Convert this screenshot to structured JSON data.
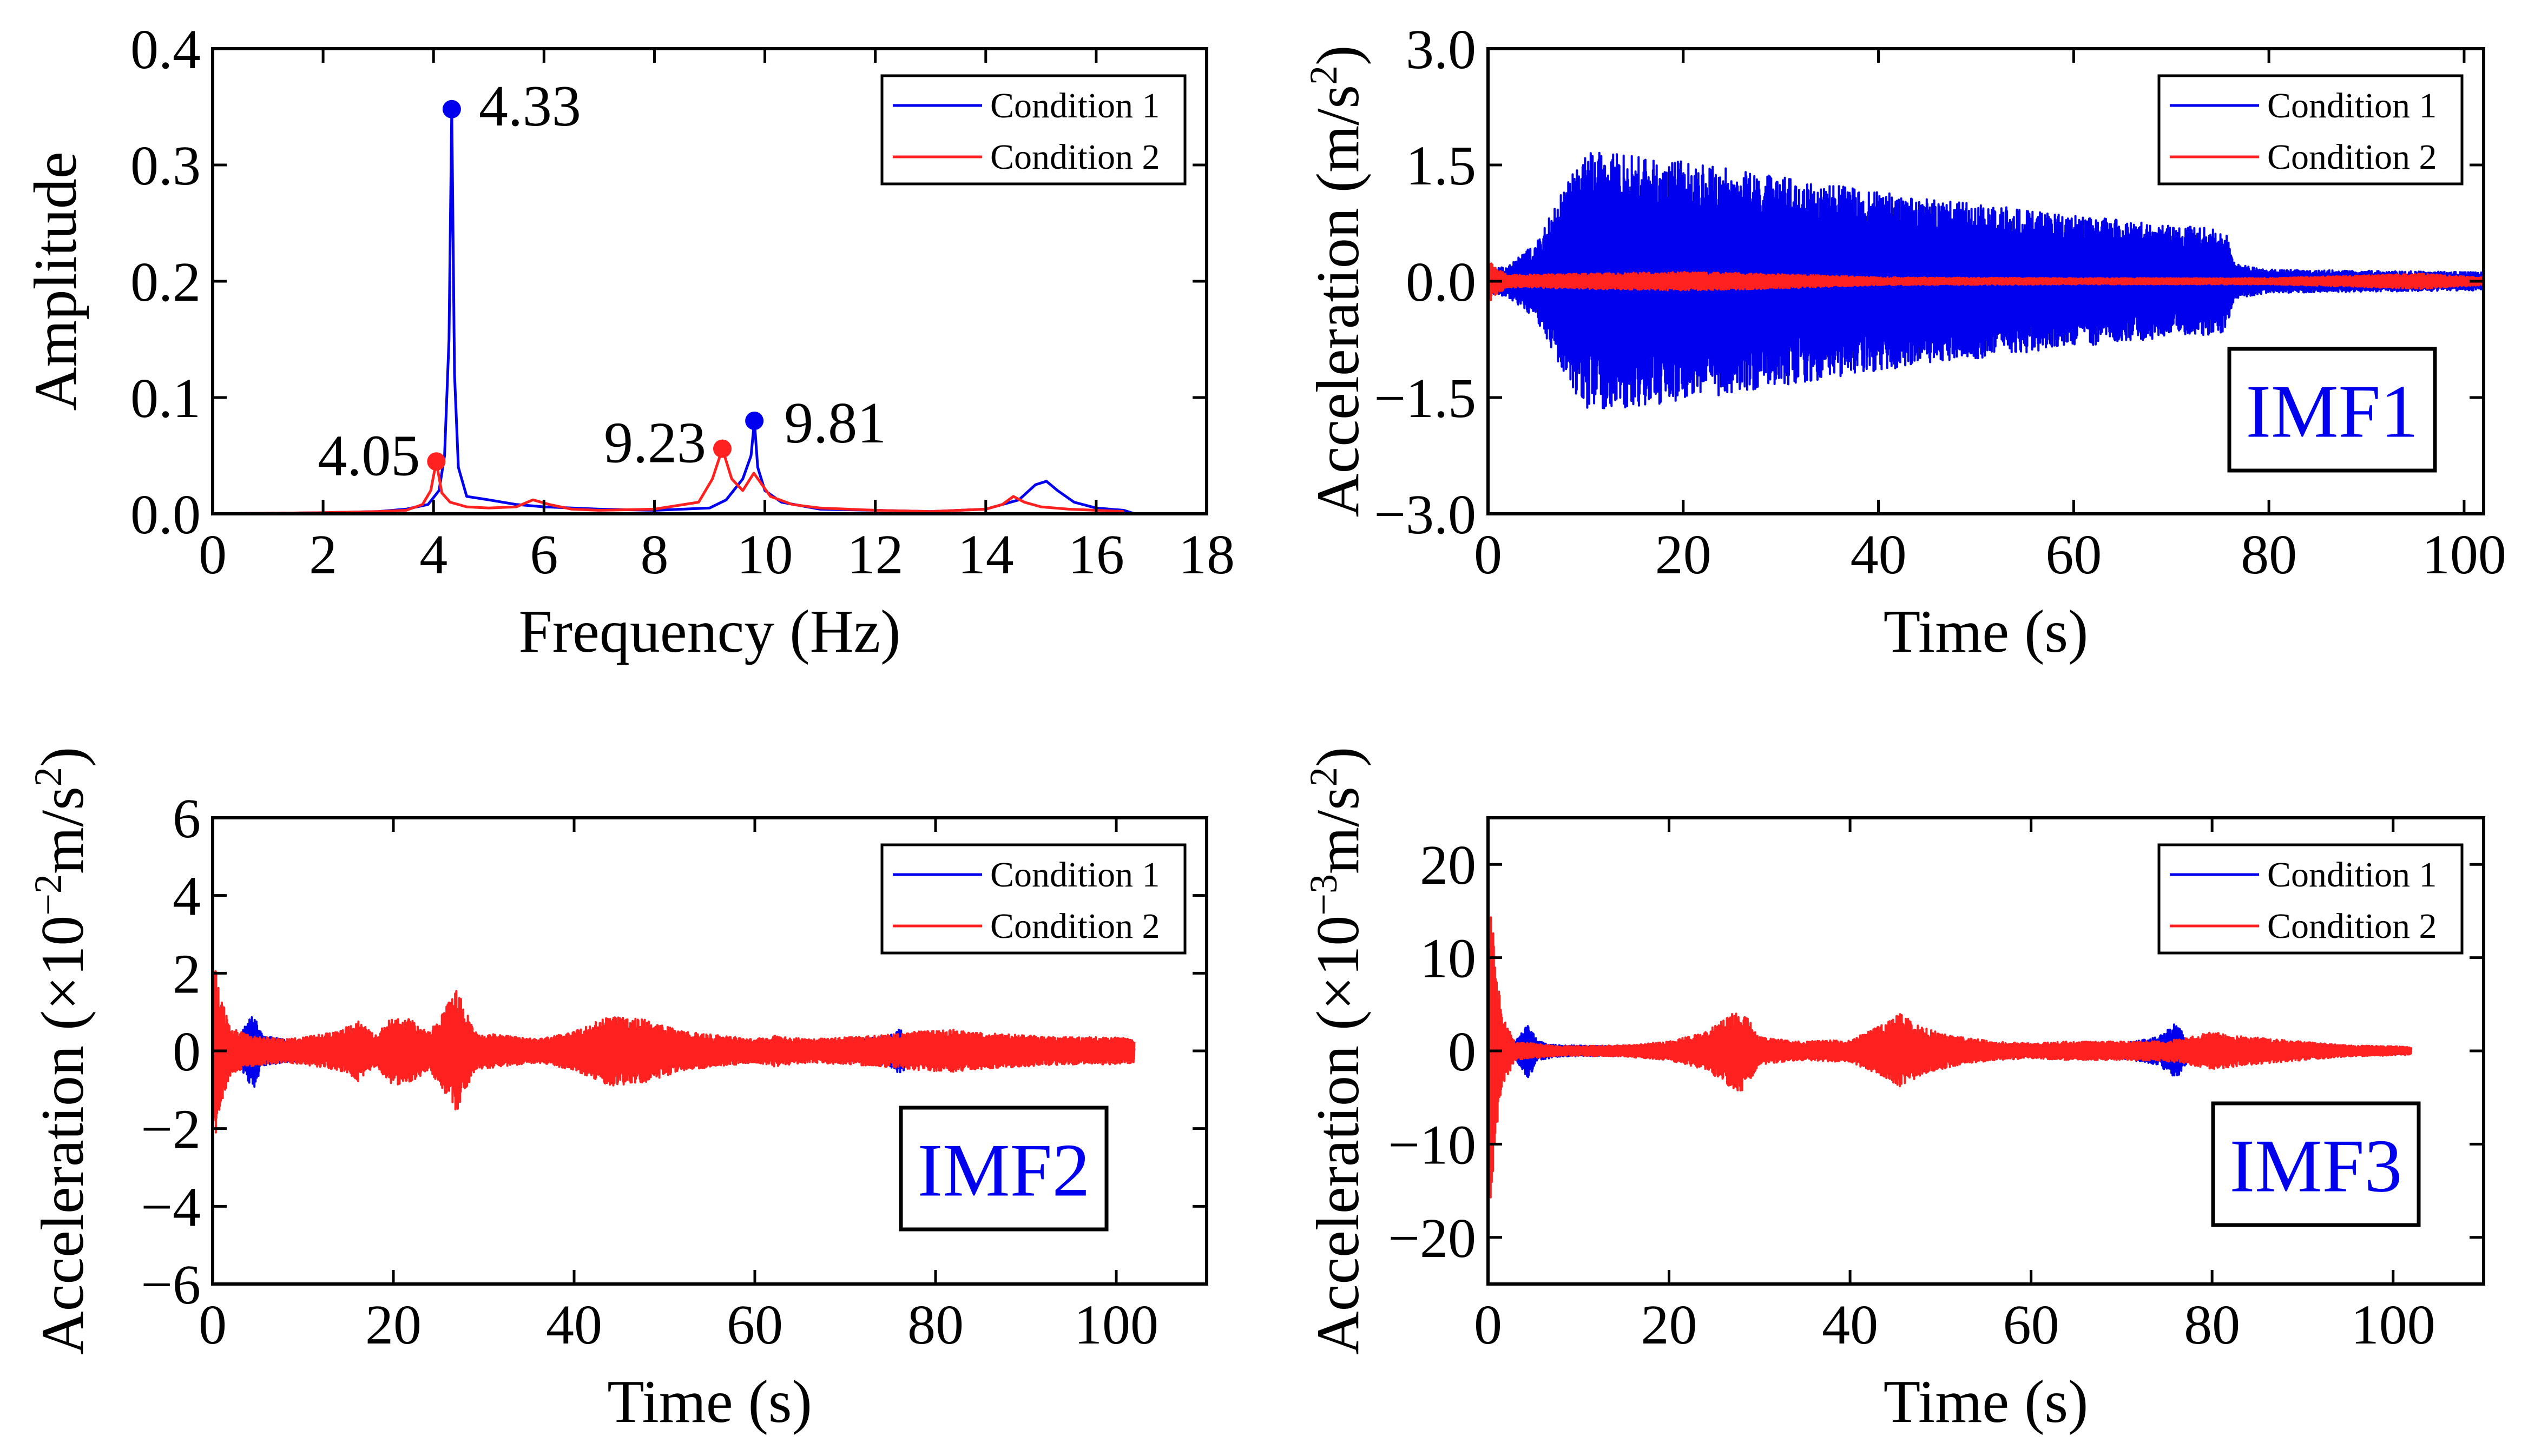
{
  "colors": {
    "condition1": "#0000ee",
    "condition2": "#ff2020",
    "imf_label": "#0000ee"
  },
  "chart_data": [
    {
      "id": "fft",
      "type": "line",
      "xlabel": "Frequency (Hz)",
      "ylabel": "Amplitude",
      "xlim": [
        0,
        18
      ],
      "ylim": [
        0,
        0.4
      ],
      "xticks": [
        0,
        2,
        4,
        6,
        8,
        10,
        12,
        14,
        16,
        18
      ],
      "yticks": [
        0.0,
        0.1,
        0.2,
        0.3,
        0.4
      ],
      "xtick_labels": [
        "0",
        "2",
        "4",
        "6",
        "8",
        "10",
        "12",
        "14",
        "16",
        "18"
      ],
      "ytick_labels": [
        "0.0",
        "0.1",
        "0.2",
        "0.3",
        "0.4"
      ],
      "legend": {
        "position": "top-right",
        "entries": [
          "Condition 1",
          "Condition 2"
        ]
      },
      "series": [
        {
          "name": "Condition 1",
          "color": "#0000ee",
          "x": [
            0,
            2.0,
            3.0,
            3.5,
            3.9,
            4.1,
            4.2,
            4.28,
            4.33,
            4.38,
            4.45,
            4.6,
            5.0,
            5.5,
            6.0,
            7.0,
            8.0,
            9.0,
            9.3,
            9.6,
            9.75,
            9.81,
            9.87,
            10.0,
            10.3,
            11.0,
            12.0,
            13.0,
            14.0,
            14.6,
            14.9,
            15.1,
            15.3,
            15.6,
            16.0,
            16.5,
            16.7
          ],
          "y": [
            0,
            0.001,
            0.002,
            0.004,
            0.008,
            0.02,
            0.05,
            0.15,
            0.348,
            0.12,
            0.04,
            0.015,
            0.012,
            0.008,
            0.006,
            0.004,
            0.003,
            0.005,
            0.012,
            0.03,
            0.05,
            0.08,
            0.04,
            0.02,
            0.01,
            0.004,
            0.003,
            0.002,
            0.004,
            0.012,
            0.025,
            0.028,
            0.02,
            0.01,
            0.005,
            0.003,
            0.0
          ]
        },
        {
          "name": "Condition 2",
          "color": "#ff2020",
          "x": [
            0,
            2.0,
            3.0,
            3.5,
            3.8,
            3.95,
            4.05,
            4.15,
            4.3,
            4.6,
            5.0,
            5.5,
            5.8,
            6.1,
            6.5,
            7.0,
            8.0,
            8.8,
            9.05,
            9.23,
            9.4,
            9.6,
            9.8,
            10.1,
            10.5,
            11.0,
            12.0,
            13.0,
            14.0,
            14.3,
            14.5,
            14.7,
            15.0,
            15.5,
            16.0,
            16.5
          ],
          "y": [
            0,
            0.001,
            0.002,
            0.003,
            0.008,
            0.02,
            0.045,
            0.018,
            0.01,
            0.006,
            0.005,
            0.006,
            0.012,
            0.008,
            0.004,
            0.003,
            0.004,
            0.01,
            0.03,
            0.056,
            0.03,
            0.02,
            0.035,
            0.015,
            0.008,
            0.005,
            0.003,
            0.002,
            0.004,
            0.008,
            0.015,
            0.01,
            0.006,
            0.004,
            0.003,
            0.002
          ]
        }
      ],
      "annotations": [
        {
          "text": "4.33",
          "x": 4.33,
          "y": 0.348,
          "color": "#0000ee"
        },
        {
          "text": "4.05",
          "x": 4.05,
          "y": 0.045,
          "color": "#ff2020"
        },
        {
          "text": "9.23",
          "x": 9.23,
          "y": 0.056,
          "color": "#ff2020"
        },
        {
          "text": "9.81",
          "x": 9.81,
          "y": 0.08,
          "color": "#0000ee"
        }
      ]
    },
    {
      "id": "imf1",
      "type": "line",
      "xlabel": "Time (s)",
      "ylabel_main": "Acceleration (m/s",
      "ylabel_sup": "2",
      "ylabel_end": ")",
      "xlim": [
        0,
        102
      ],
      "ylim": [
        -3.0,
        3.0
      ],
      "xticks": [
        0,
        20,
        40,
        60,
        80,
        100
      ],
      "yticks": [
        -3.0,
        -1.5,
        0.0,
        1.5,
        3.0
      ],
      "xtick_labels": [
        "0",
        "20",
        "40",
        "60",
        "80",
        "100"
      ],
      "ytick_labels": [
        "−3.0",
        "−1.5",
        "0.0",
        "1.5",
        "3.0"
      ],
      "legend": {
        "position": "top-right",
        "entries": [
          "Condition 1",
          "Condition 2"
        ]
      },
      "label": "IMF1",
      "series": [
        {
          "name": "Condition 1",
          "color": "#0000ee",
          "envelope": {
            "t": [
              0,
              2,
              5,
              8,
              10,
              15,
              20,
              40,
              60,
              70,
              75.5,
              76.5,
              80,
              100,
              102
            ],
            "amp": [
              0.15,
              0.2,
              0.5,
              1.25,
              1.68,
              1.62,
              1.55,
              1.15,
              0.85,
              0.72,
              0.68,
              0.22,
              0.15,
              0.12,
              0.12
            ]
          }
        },
        {
          "name": "Condition 2",
          "color": "#ff2020",
          "envelope": {
            "t": [
              0,
              0.5,
              2,
              20,
              28,
              40,
              60,
              80,
              96,
              98,
              102
            ],
            "amp": [
              0.35,
              0.2,
              0.08,
              0.12,
              0.1,
              0.05,
              0.04,
              0.04,
              0.1,
              0.08,
              0.05
            ]
          }
        }
      ]
    },
    {
      "id": "imf2",
      "type": "line",
      "xlabel": "Time (s)",
      "ylabel_main": "Acceleration (×10",
      "ylabel_sup": "−2",
      "ylabel_end": "m/s",
      "ylabel_sup2": "2",
      "ylabel_close": ")",
      "xlim": [
        0,
        110
      ],
      "ylim": [
        -6,
        6
      ],
      "xticks": [
        0,
        20,
        40,
        60,
        80,
        100
      ],
      "yticks": [
        -6,
        -4,
        -2,
        0,
        2,
        4,
        6
      ],
      "xtick_labels": [
        "0",
        "20",
        "40",
        "60",
        "80",
        "100"
      ],
      "ytick_labels": [
        "−6",
        "−4",
        "−2",
        "0",
        "2",
        "4",
        "6"
      ],
      "legend": {
        "position": "top-right",
        "entries": [
          "Condition 1",
          "Condition 2"
        ]
      },
      "label": "IMF2",
      "series": [
        {
          "name": "Condition 1",
          "color": "#0000ee",
          "envelope": {
            "t": [
              0,
              1,
              3,
              4.5,
              5.5,
              8,
              15,
              30,
              45,
              60,
              70,
              75,
              76,
              77.5,
              80,
              100,
              102
            ],
            "amp": [
              0.6,
              0.5,
              0.4,
              1.0,
              0.4,
              0.3,
              0.2,
              0.15,
              0.2,
              0.15,
              0.25,
              0.4,
              0.6,
              0.3,
              0.15,
              0.12,
              0.1
            ]
          }
        },
        {
          "name": "Condition 2",
          "color": "#ff2020",
          "envelope": {
            "t": [
              0,
              0.3,
              0.8,
              2,
              4,
              8,
              10,
              14,
              16,
              18,
              20,
              22,
              24,
              26,
              27,
              29,
              32,
              36,
              40,
              44,
              48,
              52,
              56,
              60,
              62,
              66,
              70,
              74,
              78,
              82,
              86,
              90,
              95,
              100,
              102
            ],
            "amp": [
              2.0,
              2.3,
              1.5,
              0.6,
              0.4,
              0.3,
              0.35,
              0.5,
              0.8,
              0.4,
              0.9,
              0.8,
              0.5,
              1.2,
              1.6,
              0.5,
              0.4,
              0.3,
              0.5,
              0.9,
              0.8,
              0.5,
              0.4,
              0.3,
              0.4,
              0.3,
              0.35,
              0.4,
              0.5,
              0.55,
              0.45,
              0.4,
              0.35,
              0.35,
              0.3
            ]
          }
        }
      ]
    },
    {
      "id": "imf3",
      "type": "line",
      "xlabel": "Time (s)",
      "ylabel_main": "Acceleration (×10",
      "ylabel_sup": "−3",
      "ylabel_end": "m/s",
      "ylabel_sup2": "2",
      "ylabel_close": ")",
      "xlim": [
        0,
        110
      ],
      "ylim": [
        -25,
        25
      ],
      "xticks": [
        0,
        20,
        40,
        60,
        80,
        100
      ],
      "yticks": [
        -20,
        -10,
        0,
        10,
        20
      ],
      "xtick_labels": [
        "0",
        "20",
        "40",
        "60",
        "80",
        "100"
      ],
      "ytick_labels": [
        "−20",
        "−10",
        "0",
        "10",
        "20"
      ],
      "legend": {
        "position": "top-right",
        "entries": [
          "Condition 1",
          "Condition 2"
        ]
      },
      "label": "IMF3",
      "series": [
        {
          "name": "Condition 1",
          "color": "#0000ee",
          "envelope": {
            "t": [
              0,
              1,
              3,
              4.5,
              5.5,
              8,
              15,
              25,
              40,
              50,
              60,
              70,
              74,
              76,
              77.5,
              80,
              100,
              102
            ],
            "amp": [
              2.0,
              1.5,
              1.0,
              3.0,
              1.0,
              0.6,
              0.5,
              0.6,
              0.5,
              0.5,
              0.6,
              0.8,
              1.5,
              3.0,
              1.0,
              0.5,
              0.4,
              0.3
            ]
          }
        },
        {
          "name": "Condition 2",
          "color": "#ff2020",
          "envelope": {
            "t": [
              0,
              0.3,
              0.8,
              1.5,
              3,
              8,
              15,
              20,
              24,
              27,
              28,
              30,
              34,
              40,
              44,
              45.5,
              48,
              52,
              56,
              60,
              64,
              68,
              72,
              76,
              80,
              84,
              90,
              95,
              100,
              102
            ],
            "amp": [
              14,
              16,
              10,
              4,
              1,
              0.5,
              0.6,
              1.0,
              2.0,
              4.0,
              4.5,
              1.5,
              1.0,
              1.2,
              3.0,
              4.0,
              2.5,
              1.5,
              1.0,
              0.8,
              1.0,
              1.0,
              1.0,
              1.2,
              2.0,
              1.5,
              1.0,
              0.6,
              0.5,
              0.4
            ]
          }
        }
      ]
    }
  ]
}
